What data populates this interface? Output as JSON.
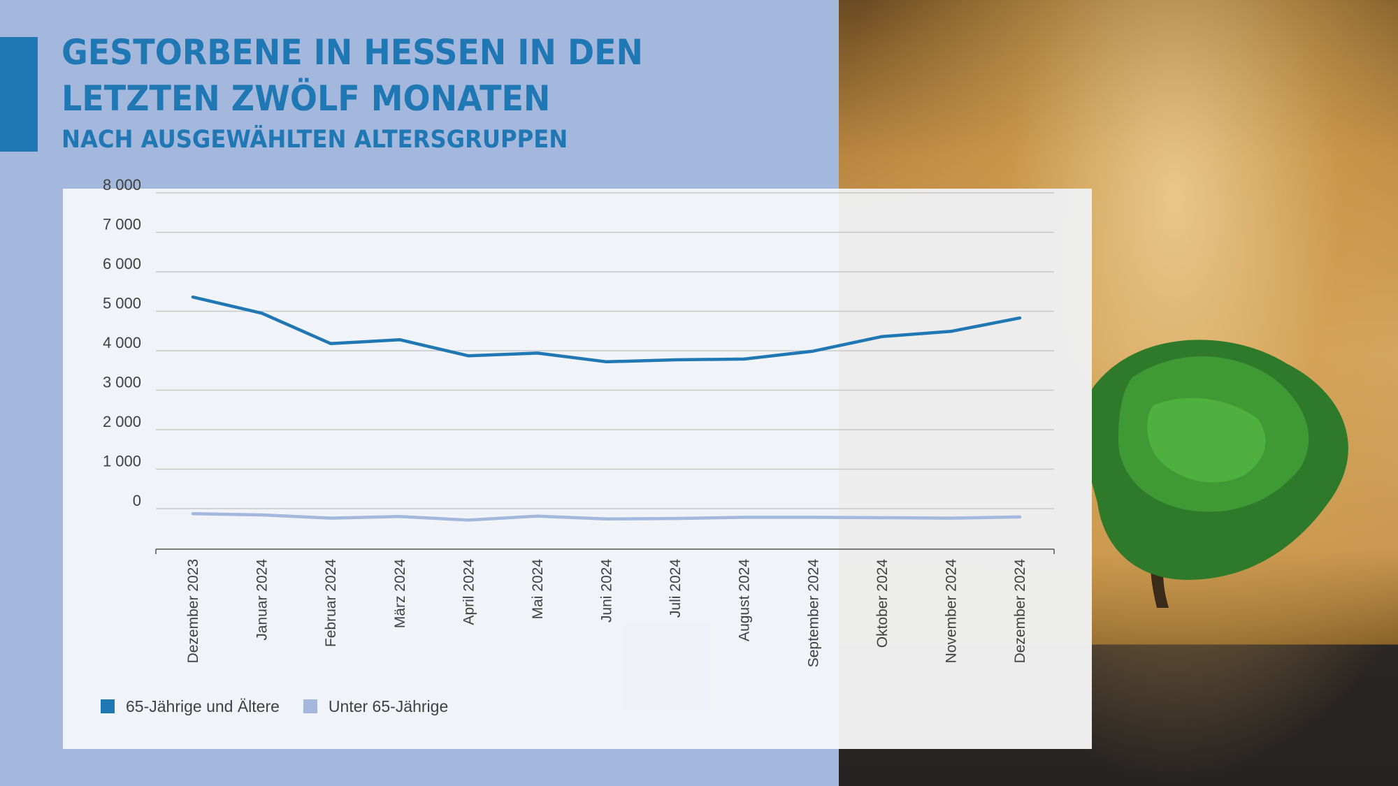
{
  "header": {
    "title_line1": "GESTORBENE IN HESSEN IN DEN",
    "title_line2": "LETZTEN ZWÖLF MONATEN",
    "subtitle": "NACH AUSGEWÄHLTEN ALTERSGRUPPEN"
  },
  "colors": {
    "accent": "#1f77b4",
    "series_old": "#1f77b4",
    "series_young": "#a3b8dc",
    "background_panel": "#a3b8dc"
  },
  "chart_data": {
    "type": "line",
    "title": "GESTORBENE IN HESSEN IN DEN LETZTEN ZWÖLF MONATEN",
    "subtitle": "NACH AUSGEWÄHLTEN ALTERSGRUPPEN",
    "xlabel": "",
    "ylabel": "",
    "ylim": [
      -1000,
      8000
    ],
    "yticks": [
      0,
      1000,
      2000,
      3000,
      4000,
      5000,
      6000,
      7000,
      8000
    ],
    "ytick_labels": [
      "0",
      "1 000",
      "2 000",
      "3 000",
      "4 000",
      "5 000",
      "6 000",
      "7 000",
      "8 000"
    ],
    "grid": true,
    "legend_position": "bottom-left",
    "categories": [
      "Dezember 2023",
      "Januar 2024",
      "Februar 2024",
      "März 2024",
      "April 2024",
      "Mai 2024",
      "Juni 2024",
      "Juli 2024",
      "August 2024",
      "September 2024",
      "Oktober 2024",
      "November 2024",
      "Dezember 2024"
    ],
    "series": [
      {
        "name": "65-Jährige und Ältere",
        "color": "#1f77b4",
        "values": [
          5360,
          4950,
          4180,
          4280,
          3870,
          3940,
          3720,
          3770,
          3790,
          3990,
          4360,
          4490,
          4830
        ]
      },
      {
        "name": "Unter 65-Jährige",
        "color": "#a3b8dc",
        "values": [
          -130,
          -160,
          -240,
          -200,
          -290,
          -190,
          -260,
          -250,
          -220,
          -220,
          -230,
          -240,
          -210
        ]
      }
    ]
  }
}
